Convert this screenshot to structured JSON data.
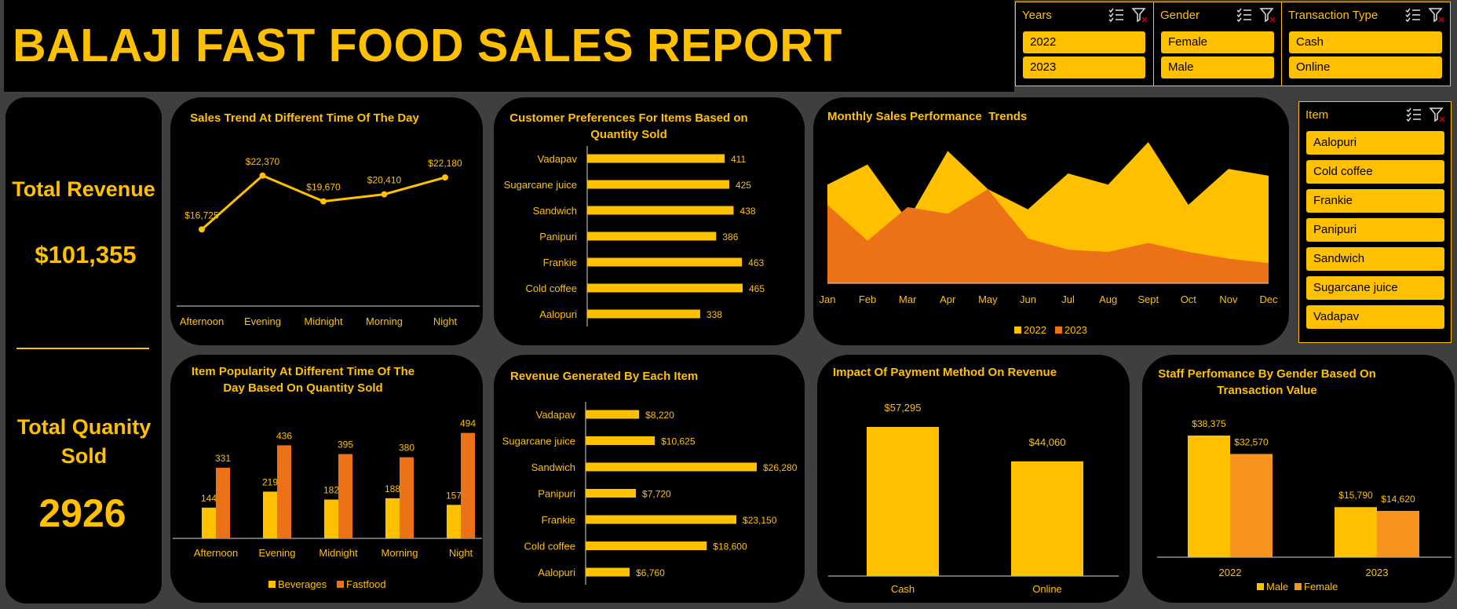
{
  "title": "BALAJI FAST FOOD SALES REPORT",
  "slicers": {
    "years": {
      "header": "Years",
      "items": [
        "2022",
        "2023"
      ]
    },
    "gender": {
      "header": "Gender",
      "items": [
        "Female",
        "Male"
      ]
    },
    "transaction": {
      "header": "Transaction Type",
      "items": [
        "Cash",
        "Online"
      ]
    },
    "item": {
      "header": "Item",
      "items": [
        "Aalopuri",
        "Cold coffee",
        "Frankie",
        "Panipuri",
        "Sandwich",
        "Sugarcane juice",
        "Vadapav"
      ]
    }
  },
  "kpis": {
    "revenue_label": "Total Revenue",
    "revenue_value": "$101,355",
    "quantity_label": "Total Quanity Sold",
    "quantity_value": "2926"
  },
  "colors": {
    "accent": "#ffc000",
    "orange": "#ed7117",
    "male_bar": "#ffc000",
    "female_bar": "#f7941d",
    "background": "#000000",
    "page": "#3f3f3f"
  },
  "chart_data": [
    {
      "id": "sales-trend",
      "type": "line",
      "title": "Sales Trend At Different Time Of The Day",
      "categories": [
        "Afternoon",
        "Evening",
        "Midnight",
        "Morning",
        "Night"
      ],
      "values": [
        16725,
        22370,
        19670,
        20410,
        22180
      ],
      "labels": [
        "$16,725",
        "$22,370",
        "$19,670",
        "$20,410",
        "$22,180"
      ]
    },
    {
      "id": "customer-preferences",
      "type": "bar",
      "orientation": "horizontal",
      "title": "Customer Preferences For Items Based on Quantity Sold",
      "categories": [
        "Vadapav",
        "Sugarcane juice",
        "Sandwich",
        "Panipuri",
        "Frankie",
        "Cold coffee",
        "Aalopuri"
      ],
      "values": [
        411,
        425,
        438,
        386,
        463,
        465,
        338
      ],
      "labels": [
        "411",
        "425",
        "438",
        "386",
        "463",
        "465",
        "338"
      ]
    },
    {
      "id": "monthly-sales",
      "type": "area",
      "title": "Monthly Sales Performance  Trends",
      "categories": [
        "Jan",
        "Feb",
        "Mar",
        "Apr",
        "May",
        "Jun",
        "Jul",
        "Aug",
        "Sept",
        "Oct",
        "Nov",
        "Dec"
      ],
      "series": [
        {
          "name": "2022",
          "values": [
            4400,
            5300,
            2800,
            5900,
            4200,
            3300,
            4900,
            4400,
            6300,
            3500,
            5100,
            4800
          ]
        },
        {
          "name": "2023",
          "values": [
            3500,
            1900,
            3400,
            3100,
            4200,
            2000,
            1500,
            1400,
            1800,
            1400,
            1100,
            900
          ]
        }
      ],
      "legend": "bottom"
    },
    {
      "id": "item-popularity",
      "type": "bar",
      "title": "Item Popularity At Different Time Of The Day Based On Quantity Sold",
      "categories": [
        "Afternoon",
        "Evening",
        "Midnight",
        "Morning",
        "Night"
      ],
      "series": [
        {
          "name": "Beverages",
          "values": [
            144,
            219,
            182,
            188,
            157
          ]
        },
        {
          "name": "Fastfood",
          "values": [
            331,
            436,
            395,
            380,
            494
          ]
        }
      ],
      "legend": "bottom"
    },
    {
      "id": "revenue-by-item",
      "type": "bar",
      "orientation": "horizontal",
      "title": "Revenue Generated By Each Item",
      "categories": [
        "Vadapav",
        "Sugarcane juice",
        "Sandwich",
        "Panipuri",
        "Frankie",
        "Cold coffee",
        "Aalopuri"
      ],
      "values": [
        8220,
        10625,
        26280,
        7720,
        23150,
        18600,
        6760
      ],
      "labels": [
        "$8,220",
        "$10,625",
        "$26,280",
        "$7,720",
        "$23,150",
        "$18,600",
        "$6,760"
      ]
    },
    {
      "id": "payment-method",
      "type": "bar",
      "title": "Impact Of Payment Method On Revenue",
      "categories": [
        "Cash",
        "Online"
      ],
      "values": [
        57295,
        44060
      ],
      "labels": [
        "$57,295",
        "$44,060"
      ]
    },
    {
      "id": "staff-gender",
      "type": "bar",
      "title": "Staff Perfomance By Gender Based On Transaction Value",
      "categories": [
        "2022",
        "2023"
      ],
      "series": [
        {
          "name": "Male",
          "values": [
            38375,
            15790
          ],
          "labels": [
            "$38,375",
            "$15,790"
          ]
        },
        {
          "name": "Female",
          "values": [
            32570,
            14620
          ],
          "labels": [
            "$32,570",
            "$14,620"
          ]
        }
      ],
      "legend": "bottom"
    }
  ]
}
